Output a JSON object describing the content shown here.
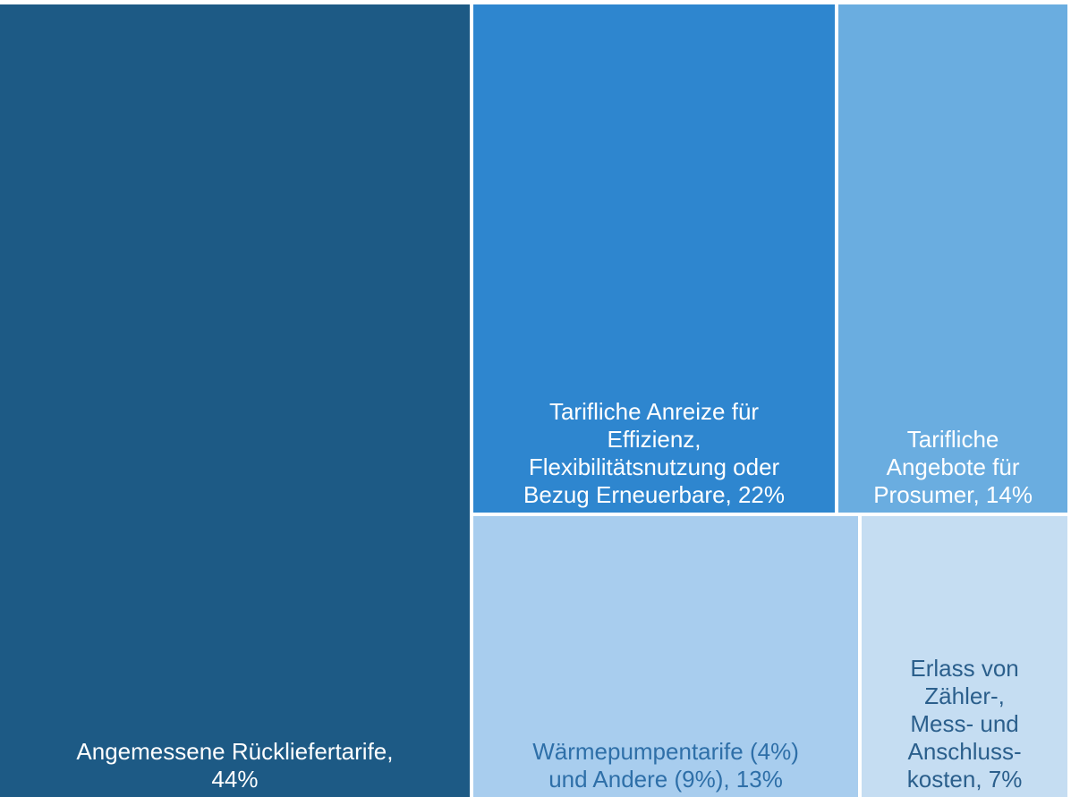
{
  "chart_data": {
    "type": "treemap",
    "categories": [
      "Angemessene Rückliefertarife,\n44%",
      "Tarifliche Anreize für\nEffizienz,\nFlexibilitätsnutzung oder\nBezug Erneuerbare, 22%",
      "Tarifliche\nAngebote für\nProsumer, 14%",
      "Wärmepumpentarife (4%)\nund Andere (9%), 13%",
      "Erlass von\nZähler-,\nMess- und\nAnschluss-\nkosten, 7%"
    ],
    "values": [
      44,
      22,
      14,
      13,
      7
    ],
    "colors": [
      "#1d5a85",
      "#2e86cf",
      "#6aade0",
      "#a8cdee",
      "#c5ddf2"
    ],
    "label_colors": [
      "#ffffff",
      "#ffffff",
      "#ffffff",
      "#2e6fa8",
      "#2b5f8c"
    ]
  }
}
